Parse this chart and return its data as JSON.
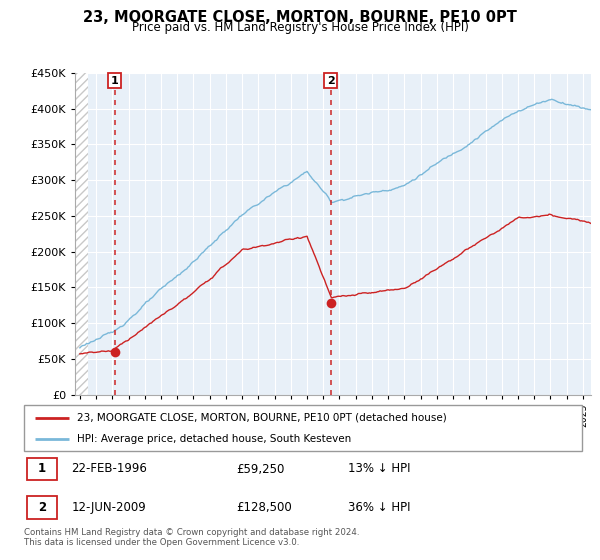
{
  "title": "23, MOORGATE CLOSE, MORTON, BOURNE, PE10 0PT",
  "subtitle": "Price paid vs. HM Land Registry's House Price Index (HPI)",
  "legend_line1": "23, MOORGATE CLOSE, MORTON, BOURNE, PE10 0PT (detached house)",
  "legend_line2": "HPI: Average price, detached house, South Kesteven",
  "annotation1_date": "22-FEB-1996",
  "annotation1_price": "£59,250",
  "annotation1_hpi": "13% ↓ HPI",
  "annotation2_date": "12-JUN-2009",
  "annotation2_price": "£128,500",
  "annotation2_hpi": "36% ↓ HPI",
  "footer": "Contains HM Land Registry data © Crown copyright and database right 2024.\nThis data is licensed under the Open Government Licence v3.0.",
  "sale1_year": 1996.14,
  "sale1_price": 59250,
  "sale2_year": 2009.45,
  "sale2_price": 128500,
  "hpi_color": "#7ab8d9",
  "price_color": "#cc2222",
  "vline_color": "#cc2222",
  "plot_bg_color": "#e8f0f8",
  "hatch_color": "#c8c8c8",
  "ylim_min": 0,
  "ylim_max": 450000,
  "xlim_min": 1993.7,
  "xlim_max": 2025.5,
  "hatch_end": 1994.5
}
